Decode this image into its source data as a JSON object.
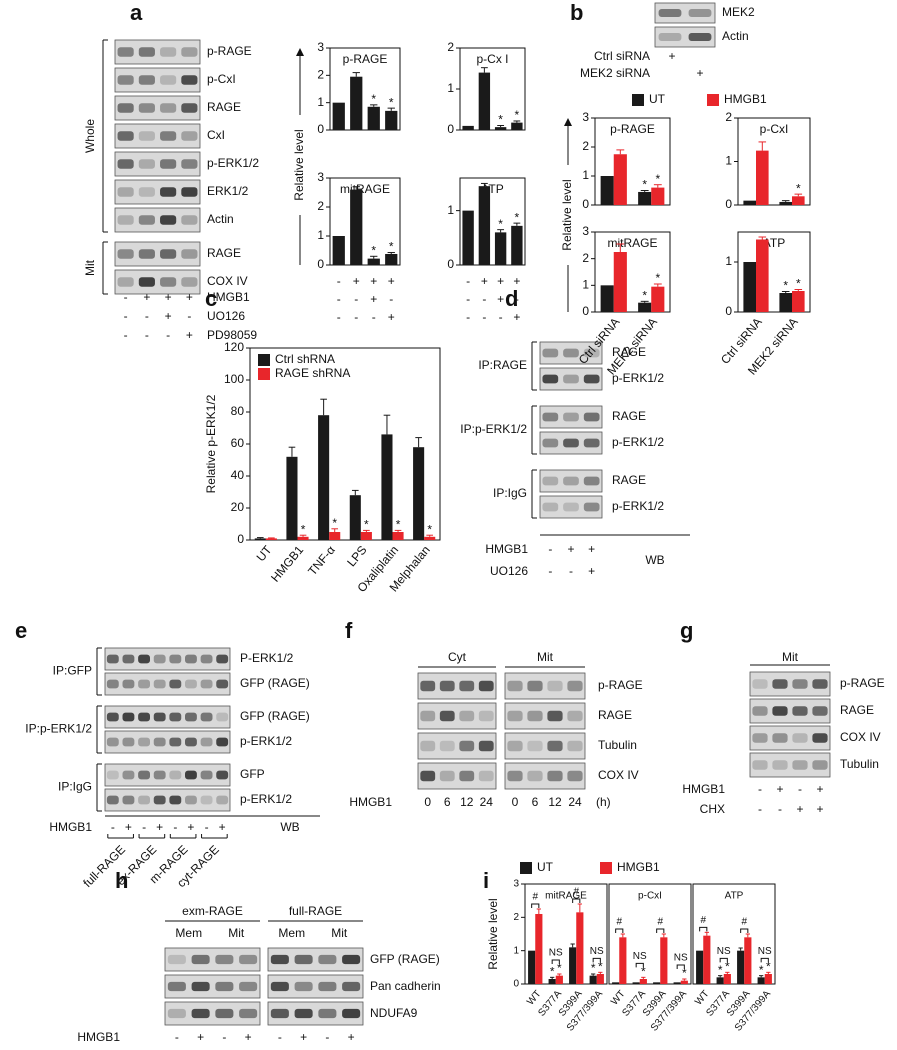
{
  "figure": {
    "a": {
      "letter": "a",
      "groups": [
        {
          "label": "Whole",
          "rows": [
            "p-RAGE",
            "p-CxI",
            "RAGE",
            "CxI",
            "p-ERK1/2",
            "ERK1/2",
            "Actin"
          ]
        },
        {
          "label": "Mit",
          "rows": [
            "RAGE",
            "COX IV"
          ]
        }
      ],
      "treatments": [
        {
          "name": "HMGB1",
          "signs": [
            "-",
            "+",
            "+",
            "+"
          ]
        },
        {
          "name": "UO126",
          "signs": [
            "-",
            "-",
            "+",
            "-"
          ]
        },
        {
          "name": "PD98059",
          "signs": [
            "-",
            "-",
            "-",
            "+"
          ]
        }
      ]
    },
    "b": {
      "letter": "b",
      "blot_rows": [
        "MEK2",
        "Actin"
      ],
      "treatments": [
        {
          "name": "Ctrl siRNA",
          "signs": [
            "+",
            null
          ]
        },
        {
          "name": "MEK2 siRNA",
          "signs": [
            null,
            "+"
          ]
        }
      ]
    },
    "c": {
      "letter": "c"
    },
    "d": {
      "letter": "d",
      "groups": [
        {
          "label": "IP:RAGE",
          "rows": [
            "RAGE",
            "p-ERK1/2"
          ]
        },
        {
          "label": "IP:p-ERK1/2",
          "rows": [
            "RAGE",
            "p-ERK1/2"
          ]
        },
        {
          "label": "IP:IgG",
          "rows": [
            "RAGE",
            "p-ERK1/2"
          ]
        }
      ],
      "treatments": [
        {
          "name": "HMGB1",
          "signs": [
            "-",
            "+",
            "+"
          ]
        },
        {
          "name": "UO126",
          "signs": [
            "-",
            "-",
            "+"
          ]
        }
      ],
      "footer": "WB"
    },
    "e": {
      "letter": "e",
      "groups": [
        {
          "label": "IP:GFP",
          "rows": [
            "P-ERK1/2",
            "GFP (RAGE)"
          ]
        },
        {
          "label": "IP:p-ERK1/2",
          "rows": [
            "GFP (RAGE)",
            "p-ERK1/2"
          ]
        },
        {
          "label": "IP:IgG",
          "rows": [
            "GFP",
            "p-ERK1/2"
          ]
        }
      ],
      "treatments": [
        {
          "name": "HMGB1",
          "signs": [
            "-",
            "+",
            "-",
            "+",
            "-",
            "+",
            "-",
            "+"
          ]
        }
      ],
      "constructs": [
        "full-RAGE",
        "ex-RAGE",
        "m-RAGE",
        "cyt-RAGE"
      ],
      "footer": "WB"
    },
    "f": {
      "letter": "f",
      "fractions": [
        "Cyt",
        "Mit"
      ],
      "blot_rows": [
        "p-RAGE",
        "RAGE",
        "Tubulin",
        "COX IV"
      ],
      "treatment": {
        "name": "HMGB1",
        "times": [
          0,
          6,
          12,
          24
        ],
        "unit": "(h)"
      }
    },
    "g": {
      "letter": "g",
      "fraction": "Mit",
      "blot_rows": [
        "p-RAGE",
        "RAGE",
        "COX IV",
        "Tubulin"
      ],
      "treatments": [
        {
          "name": "HMGB1",
          "signs": [
            "-",
            "+",
            "-",
            "+"
          ]
        },
        {
          "name": "CHX",
          "signs": [
            "-",
            "-",
            "+",
            "+"
          ]
        }
      ]
    },
    "h": {
      "letter": "h",
      "constructs": [
        "exm-RAGE",
        "full-RAGE"
      ],
      "fractions": [
        "Mem",
        "Mit"
      ],
      "blot_rows": [
        "GFP (RAGE)",
        "Pan cadherin",
        "NDUFA9"
      ],
      "treatments": [
        {
          "name": "HMGB1",
          "signs": [
            "-",
            "+",
            "-",
            "+",
            "-",
            "+",
            "-",
            "+"
          ]
        }
      ]
    },
    "i": {
      "letter": "i"
    }
  },
  "chart_data": [
    {
      "type": "bar",
      "ylabel": "Relative level",
      "series": [
        {
          "color": "#1a1a1a"
        }
      ],
      "subplots": [
        {
          "title": "p-RAGE",
          "ylim": [
            0,
            3
          ],
          "yticks": [
            0,
            1,
            2,
            3
          ],
          "data": [
            {
              "values": [
                1,
                1.95,
                0.85,
                0.7
              ],
              "errors": [
                0,
                0.15,
                0.07,
                0.1
              ],
              "stars": [
                null,
                null,
                "*",
                "*"
              ]
            }
          ]
        },
        {
          "title": "p-Cx I",
          "ylim": [
            0,
            2
          ],
          "yticks": [
            0,
            1,
            2
          ],
          "data": [
            {
              "values": [
                0.1,
                1.4,
                0.07,
                0.18
              ],
              "errors": [
                0,
                0.12,
                0.04,
                0.04
              ],
              "stars": [
                null,
                null,
                "*",
                "*"
              ]
            }
          ]
        },
        {
          "title": "mitRAGE",
          "ylim": [
            0,
            3
          ],
          "yticks": [
            0,
            1,
            2,
            3
          ],
          "data": [
            {
              "values": [
                1,
                2.6,
                0.22,
                0.38
              ],
              "errors": [
                0,
                0.1,
                0.08,
                0.05
              ],
              "stars": [
                null,
                null,
                "*",
                "*"
              ]
            }
          ]
        },
        {
          "title": "ATP",
          "ylim": [
            0,
            1.6
          ],
          "yticks": [
            0,
            1
          ],
          "data": [
            {
              "values": [
                1,
                1.45,
                0.6,
                0.72
              ],
              "errors": [
                0,
                0.05,
                0.05,
                0.05
              ],
              "stars": [
                null,
                null,
                "*",
                "*"
              ]
            }
          ]
        }
      ]
    },
    {
      "type": "bar",
      "ylabel": "Relative level",
      "categories": [
        "Ctrl siRNA",
        "MEK2 siRNA"
      ],
      "series": [
        {
          "name": "UT",
          "color": "#1a1a1a"
        },
        {
          "name": "HMGB1",
          "color": "#e8262b"
        }
      ],
      "subplots": [
        {
          "title": "p-RAGE",
          "ylim": [
            0,
            3
          ],
          "yticks": [
            0,
            1,
            2,
            3
          ],
          "data": [
            {
              "values": [
                1,
                0.45
              ],
              "errors": [
                0,
                0.05
              ],
              "stars": [
                null,
                "*"
              ]
            },
            {
              "values": [
                1.75,
                0.6
              ],
              "errors": [
                0.15,
                0.1
              ],
              "stars": [
                null,
                "*"
              ]
            }
          ]
        },
        {
          "title": "p-CxI",
          "ylim": [
            0,
            2
          ],
          "yticks": [
            0,
            1,
            2
          ],
          "data": [
            {
              "values": [
                0.1,
                0.07
              ],
              "errors": [
                0,
                0.03
              ]
            },
            {
              "values": [
                1.25,
                0.2
              ],
              "errors": [
                0.2,
                0.05
              ],
              "stars": [
                null,
                "*"
              ]
            }
          ]
        },
        {
          "title": "mitRAGE",
          "ylim": [
            0,
            3
          ],
          "yticks": [
            0,
            1,
            2,
            3
          ],
          "data": [
            {
              "values": [
                1,
                0.35
              ],
              "errors": [
                0,
                0.05
              ],
              "stars": [
                null,
                "*"
              ]
            },
            {
              "values": [
                2.25,
                0.95
              ],
              "errors": [
                0.3,
                0.1
              ],
              "stars": [
                null,
                "*"
              ]
            }
          ]
        },
        {
          "title": "ATP",
          "ylim": [
            0,
            1.6
          ],
          "yticks": [
            0,
            1
          ],
          "data": [
            {
              "values": [
                1,
                0.38
              ],
              "errors": [
                0,
                0.03
              ],
              "stars": [
                null,
                "*"
              ]
            },
            {
              "values": [
                1.45,
                0.42
              ],
              "errors": [
                0.05,
                0.03
              ],
              "stars": [
                null,
                "*"
              ]
            }
          ]
        }
      ]
    },
    {
      "type": "bar",
      "ylabel": "Relative p-ERK1/2",
      "categories": [
        "UT",
        "HMGB1",
        "TNF-α",
        "LPS",
        "Oxaliplatin",
        "Melphalan"
      ],
      "series": [
        {
          "name": "Ctrl shRNA",
          "color": "#1a1a1a"
        },
        {
          "name": "RAGE shRNA",
          "color": "#e8262b"
        }
      ],
      "subplots": [
        {
          "ylim": [
            0,
            120
          ],
          "yticks": [
            0,
            20,
            40,
            60,
            80,
            100,
            120
          ],
          "data": [
            {
              "values": [
                1,
                52,
                78,
                28,
                66,
                58
              ],
              "errors": [
                0.5,
                6,
                10,
                3,
                12,
                6
              ]
            },
            {
              "values": [
                1,
                2,
                5,
                5,
                5,
                2
              ],
              "errors": [
                0.3,
                1,
                2,
                1,
                1,
                1
              ],
              "stars": [
                null,
                "*",
                "*",
                "*",
                "*",
                "*"
              ]
            }
          ]
        }
      ]
    },
    {
      "type": "bar",
      "ylabel": "Relative level",
      "categories": [
        "WT",
        "S377A",
        "S399A",
        "S377/399A"
      ],
      "series": [
        {
          "name": "UT",
          "color": "#1a1a1a"
        },
        {
          "name": "HMGB1",
          "color": "#e8262b"
        }
      ],
      "subplots": [
        {
          "title": "mitRAGE",
          "ylim": [
            0,
            3
          ],
          "yticks": [
            0,
            1,
            2,
            3
          ],
          "brackets": [
            "#",
            "NS",
            "#",
            "NS"
          ],
          "data": [
            {
              "values": [
                1,
                0.15,
                1.1,
                0.25
              ],
              "errors": [
                0,
                0.05,
                0.1,
                0.05
              ],
              "stars": [
                null,
                "*",
                null,
                "*"
              ]
            },
            {
              "values": [
                2.1,
                0.25,
                2.15,
                0.3
              ],
              "errors": [
                0.15,
                0.05,
                0.25,
                0.05
              ],
              "stars": [
                null,
                "*",
                null,
                "*"
              ]
            }
          ]
        },
        {
          "title": "p-CxI",
          "ylim": [
            0,
            3
          ],
          "brackets": [
            "#",
            "NS",
            "#",
            "NS"
          ],
          "data": [
            {
              "values": [
                0.05,
                0.05,
                0.05,
                0.05
              ]
            },
            {
              "values": [
                1.4,
                0.15,
                1.4,
                0.1
              ],
              "errors": [
                0.1,
                0.05,
                0.1,
                0.05
              ],
              "stars": [
                null,
                "*",
                null,
                "*"
              ]
            }
          ]
        },
        {
          "title": "ATP",
          "ylim": [
            0,
            3
          ],
          "brackets": [
            "#",
            "NS",
            "#",
            "NS"
          ],
          "data": [
            {
              "values": [
                1,
                0.2,
                1,
                0.2
              ],
              "errors": [
                0,
                0.05,
                0.08,
                0.05
              ],
              "stars": [
                null,
                "*",
                null,
                "*"
              ]
            },
            {
              "values": [
                1.45,
                0.3,
                1.4,
                0.3
              ],
              "errors": [
                0.1,
                0.05,
                0.1,
                0.05
              ],
              "stars": [
                null,
                "*",
                null,
                "*"
              ]
            }
          ]
        }
      ]
    }
  ]
}
